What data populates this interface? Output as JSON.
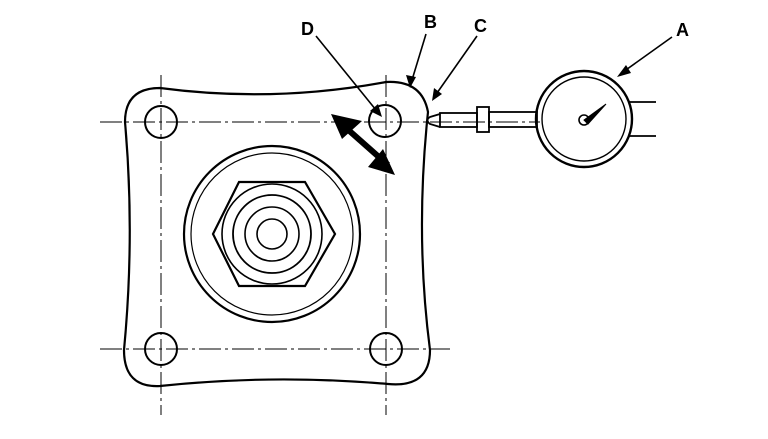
{
  "diagram": {
    "callouts": {
      "a": "A",
      "b": "B",
      "c": "C",
      "d": "D"
    },
    "colors": {
      "line": "#000000",
      "background": "#ffffff"
    }
  }
}
